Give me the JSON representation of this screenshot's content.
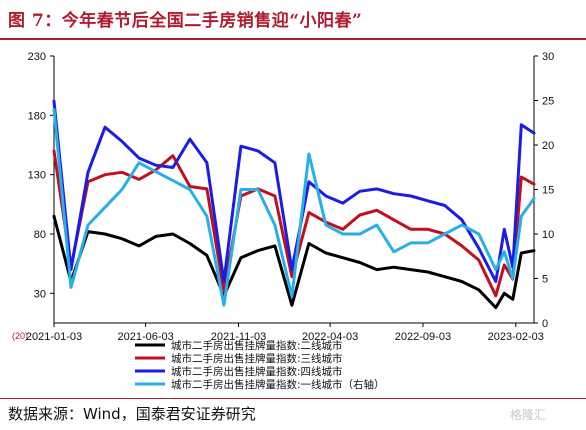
{
  "page": {
    "title": "图 7：今年春节后全国二手房销售迎“小阳春”",
    "source": "数据来源：Wind，国泰君安证券研究",
    "watermark": "格隆汇"
  },
  "chart_data": {
    "type": "line",
    "x": [
      "2021-01-03",
      "2021-01-31",
      "2021-02-28",
      "2021-03-28",
      "2021-04-25",
      "2021-05-23",
      "2021-06-20",
      "2021-07-18",
      "2021-08-15",
      "2021-09-12",
      "2021-10-10",
      "2021-11-07",
      "2021-12-05",
      "2022-01-02",
      "2022-01-30",
      "2022-02-27",
      "2022-03-27",
      "2022-04-24",
      "2022-05-22",
      "2022-06-19",
      "2022-07-17",
      "2022-08-14",
      "2022-09-11",
      "2022-10-09",
      "2022-11-06",
      "2022-12-04",
      "2023-01-01",
      "2023-01-15",
      "2023-01-29",
      "2023-02-12",
      "2023-03-05"
    ],
    "x_tick_labels": [
      "2021-01-03",
      "2021-06-03",
      "2021-11-03",
      "2022-04-03",
      "2022-09-03",
      "2023-02-03"
    ],
    "x_tick_dates": [
      "2021-01-03",
      "2021-06-03",
      "2021-11-03",
      "2022-04-03",
      "2022-09-03",
      "2023-02-03"
    ],
    "x_range": [
      "2021-01-03",
      "2023-03-05"
    ],
    "y_left": {
      "ticks": [
        30,
        80,
        130,
        180,
        230
      ],
      "range": [
        5,
        230
      ]
    },
    "y_right": {
      "ticks": [
        0,
        5,
        10,
        15,
        20,
        25,
        30
      ],
      "range": [
        0,
        30
      ]
    },
    "extra_label": "(20)",
    "series": [
      {
        "name": "城市二手房出售挂牌量指数:二线城市",
        "color": "#000000",
        "axis": "left",
        "values": [
          95,
          40,
          82,
          80,
          76,
          70,
          78,
          80,
          72,
          62,
          28,
          60,
          66,
          70,
          20,
          72,
          64,
          60,
          56,
          50,
          52,
          50,
          48,
          44,
          40,
          33,
          18,
          30,
          25,
          64,
          66
        ]
      },
      {
        "name": "城市二手房出售挂牌量指数:三线城市",
        "color": "#c0101c",
        "axis": "left",
        "values": [
          150,
          52,
          124,
          130,
          132,
          126,
          134,
          146,
          120,
          118,
          32,
          112,
          118,
          112,
          44,
          98,
          90,
          84,
          96,
          100,
          92,
          84,
          84,
          80,
          70,
          58,
          28,
          54,
          42,
          128,
          122
        ]
      },
      {
        "name": "城市二手房出售挂牌量指数:四线城市",
        "color": "#1c1ce6",
        "axis": "left",
        "values": [
          192,
          50,
          132,
          170,
          158,
          144,
          138,
          136,
          160,
          140,
          40,
          154,
          150,
          140,
          50,
          124,
          112,
          106,
          116,
          118,
          114,
          112,
          108,
          104,
          92,
          68,
          40,
          84,
          52,
          172,
          165
        ]
      },
      {
        "name": "城市二手房出售挂牌量指数:一线城市（右轴）",
        "color": "#2aaee8",
        "axis": "right",
        "values": [
          24,
          4,
          11,
          13,
          15,
          18,
          17,
          16,
          15,
          12,
          2,
          15,
          15,
          11,
          3,
          19,
          11,
          10,
          10,
          11,
          8,
          9,
          9,
          10,
          11,
          10,
          6,
          8,
          5,
          12,
          14
        ]
      }
    ]
  }
}
